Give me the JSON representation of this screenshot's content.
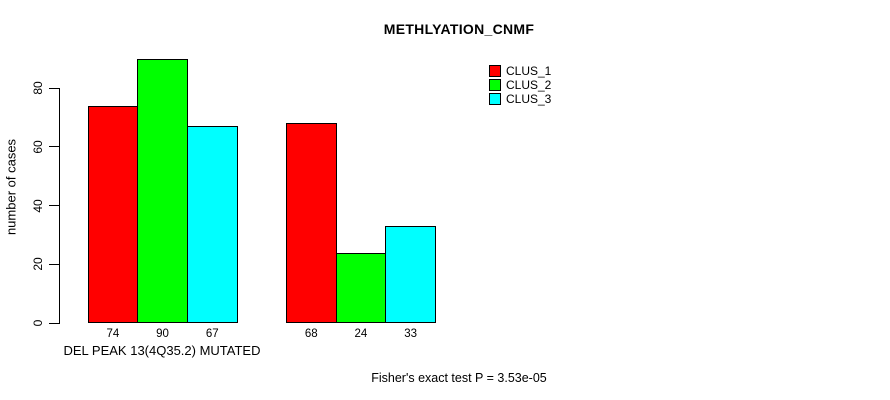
{
  "page": {
    "background_color": "#ffffff",
    "text_color": "#000000"
  },
  "chart_data": {
    "type": "bar",
    "title": "METHLYATION_CNMF",
    "ylabel": "number of cases",
    "xlabel": "DEL PEAK 13(4Q35.2) MUTATED",
    "categories": [
      "",
      ""
    ],
    "series": [
      {
        "name": "CLUS_1",
        "color": "#ff0000",
        "values": [
          74,
          68
        ]
      },
      {
        "name": "CLUS_2",
        "color": "#00ff00",
        "values": [
          90,
          24
        ]
      },
      {
        "name": "CLUS_3",
        "color": "#00ffff",
        "values": [
          67,
          33
        ]
      }
    ],
    "bar_value_labels": [
      [
        74,
        90,
        67
      ],
      [
        68,
        24,
        33
      ]
    ],
    "show_bar_value_labels": true,
    "bar_border_color": "#000000",
    "yticks": [
      0,
      20,
      40,
      60,
      80
    ],
    "ylim": [
      0,
      93
    ],
    "grid": false,
    "legend": {
      "position": "top-right",
      "entries": [
        "CLUS_1",
        "CLUS_2",
        "CLUS_3"
      ]
    },
    "annotation": "Fisher's exact test P = 3.53e-05"
  }
}
